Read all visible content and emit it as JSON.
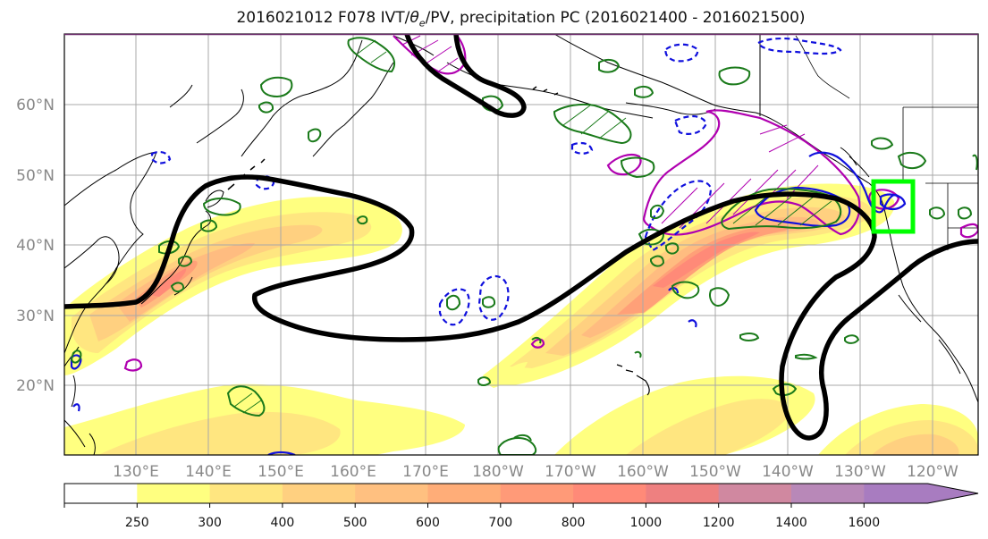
{
  "title": {
    "prefix": "2016021012 F078 IVT/",
    "theta": "θ",
    "sub": "e",
    "suffix": "/PV, precipitation PC (2016021400 - 2016021500)"
  },
  "lat_labels": [
    "60°N",
    "50°N",
    "40°N",
    "30°N",
    "20°N"
  ],
  "lon_labels": [
    "130°E",
    "140°E",
    "150°E",
    "160°E",
    "170°E",
    "180°W",
    "170°W",
    "160°W",
    "150°W",
    "140°W",
    "130°W",
    "120°W"
  ],
  "colorbar": {
    "ticks": [
      "250",
      "300",
      "400",
      "500",
      "600",
      "700",
      "800",
      "1000",
      "1200",
      "1400",
      "1600"
    ],
    "colors": [
      "#ffffff",
      "#ffff80",
      "#ffe680",
      "#ffd080",
      "#ffc080",
      "#ffad78",
      "#ff9a78",
      "#ff8a78",
      "#ee8080",
      "#d088a0",
      "#b888b8",
      "#a87cc0"
    ]
  },
  "colors": {
    "ivt_contour": "#000000",
    "precip_contour": "#1a7a1a",
    "pv_contour": "#b000b0",
    "theta_contour": "#1010dd",
    "target_box": "#00ff00"
  }
}
